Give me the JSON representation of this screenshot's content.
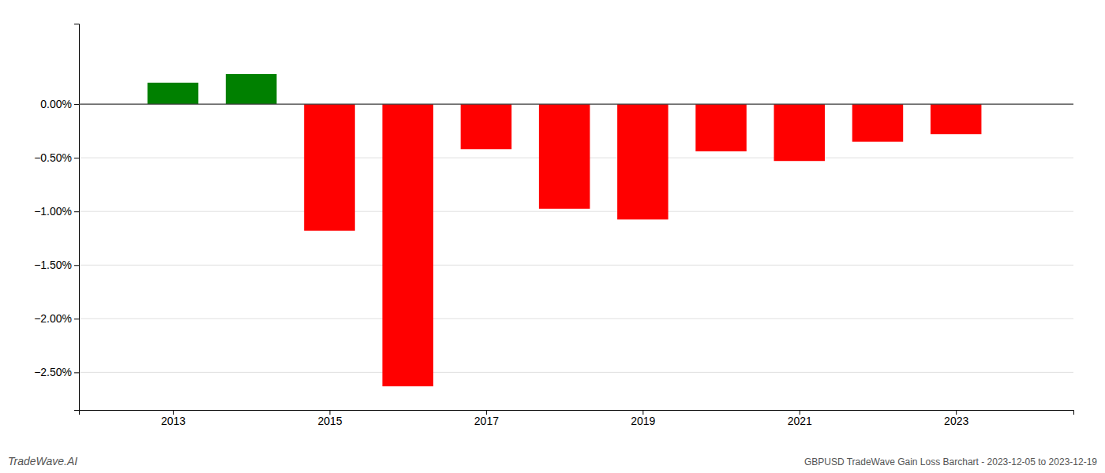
{
  "chart_data": {
    "type": "bar",
    "x": [
      2013,
      2014,
      2015,
      2016,
      2017,
      2018,
      2019,
      2020,
      2021,
      2022,
      2023
    ],
    "values": [
      0.002,
      0.0028,
      -0.0118,
      -0.0263,
      -0.0042,
      -0.00975,
      -0.01075,
      -0.0044,
      -0.0053,
      -0.0035,
      -0.0028
    ],
    "colors": [
      "#008000",
      "#008000",
      "#ff0000",
      "#ff0000",
      "#ff0000",
      "#ff0000",
      "#ff0000",
      "#ff0000",
      "#ff0000",
      "#ff0000",
      "#ff0000"
    ],
    "xlim": [
      2011.8,
      2024.5
    ],
    "xticks": [
      2013,
      2015,
      2017,
      2019,
      2021,
      2023
    ],
    "ylim": [
      -0.0285,
      0.0075
    ],
    "yticks": [
      {
        "value": 0.0,
        "label": "0.00%"
      },
      {
        "value": -0.005,
        "label": "−0.50%"
      },
      {
        "value": -0.01,
        "label": "−1.00%"
      },
      {
        "value": -0.015,
        "label": "−1.50%"
      },
      {
        "value": -0.02,
        "label": "−2.00%"
      },
      {
        "value": -0.025,
        "label": "−2.50%"
      }
    ],
    "grid": true,
    "annotations": [
      "TradeWave.AI",
      "GBPUSD TradeWave Gain Loss Barchart - 2023-12-05 to 2023-12-19"
    ]
  }
}
